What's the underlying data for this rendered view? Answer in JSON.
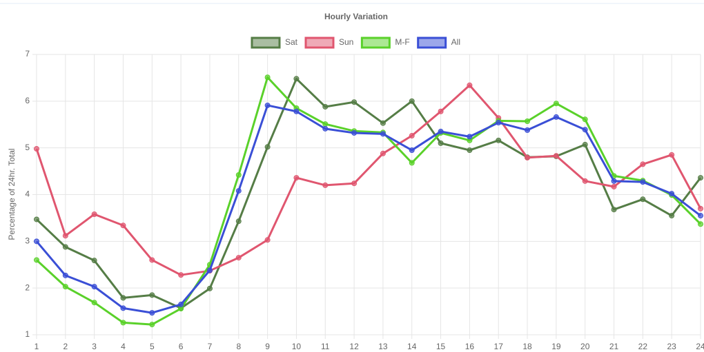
{
  "chart_data": {
    "type": "line",
    "title": "Hourly Variation",
    "y_label": "Percentage of 24hr. Total",
    "categories": [
      "1",
      "2",
      "3",
      "4",
      "5",
      "6",
      "7",
      "8",
      "9",
      "10",
      "11",
      "12",
      "13",
      "14",
      "15",
      "16",
      "17",
      "18",
      "19",
      "20",
      "21",
      "22",
      "23",
      "24"
    ],
    "series": [
      {
        "name": "Sat",
        "color": "#557d46",
        "values": [
          3.47,
          2.88,
          2.59,
          1.79,
          1.85,
          1.57,
          1.99,
          3.43,
          5.02,
          6.48,
          5.88,
          5.98,
          5.53,
          6.0,
          5.1,
          4.95,
          5.16,
          4.8,
          4.82,
          5.07,
          3.68,
          3.9,
          3.55,
          4.36
        ]
      },
      {
        "name": "Sun",
        "color": "#e0566f",
        "values": [
          4.98,
          3.12,
          3.58,
          3.34,
          2.6,
          2.28,
          2.37,
          2.65,
          3.03,
          4.36,
          4.2,
          4.24,
          4.88,
          5.26,
          5.78,
          6.34,
          5.64,
          4.79,
          4.83,
          4.29,
          4.17,
          4.65,
          4.85,
          3.7
        ]
      },
      {
        "name": "M-F",
        "color": "#5ad12a",
        "values": [
          2.6,
          2.03,
          1.69,
          1.26,
          1.22,
          1.56,
          2.5,
          4.42,
          6.51,
          5.85,
          5.51,
          5.36,
          5.33,
          4.68,
          5.32,
          5.16,
          5.58,
          5.57,
          5.95,
          5.61,
          4.4,
          4.3,
          3.99,
          3.37
        ]
      },
      {
        "name": "All",
        "color": "#3a4fd6",
        "values": [
          3.0,
          2.27,
          2.03,
          1.57,
          1.47,
          1.65,
          2.38,
          4.08,
          5.91,
          5.78,
          5.41,
          5.32,
          5.3,
          4.95,
          5.35,
          5.24,
          5.54,
          5.38,
          5.66,
          5.39,
          4.29,
          4.27,
          4.02,
          3.55
        ]
      }
    ],
    "ylim": [
      1,
      7
    ],
    "yticks": [
      1,
      2,
      3,
      4,
      5,
      6,
      7
    ],
    "grid": true,
    "legend": "top"
  }
}
